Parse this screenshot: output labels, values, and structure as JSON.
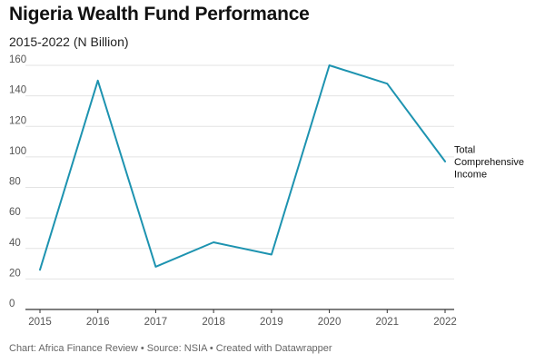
{
  "title": "Nigeria Wealth Fund Performance",
  "subtitle": "2015-2022 (N Billion)",
  "footer": "Chart: Africa Finance Review • Source: NSIA • Created with Datawrapper",
  "chart_data": {
    "type": "line",
    "title": "Nigeria Wealth Fund Performance",
    "subtitle": "2015-2022 (N Billion)",
    "xlabel": "",
    "ylabel": "",
    "x": [
      "2015",
      "2016",
      "2017",
      "2018",
      "2019",
      "2020",
      "2021",
      "2022"
    ],
    "ylim": [
      0,
      160
    ],
    "yticks": [
      0,
      20,
      40,
      60,
      80,
      100,
      120,
      140,
      160
    ],
    "grid": true,
    "series": [
      {
        "name": "Total Comprehensive Income",
        "label_lines": [
          "Total",
          "Comprehensive",
          "Income"
        ],
        "values": [
          26,
          150,
          28,
          44,
          36,
          160,
          148,
          97
        ],
        "color": "#1d93b0"
      }
    ]
  }
}
